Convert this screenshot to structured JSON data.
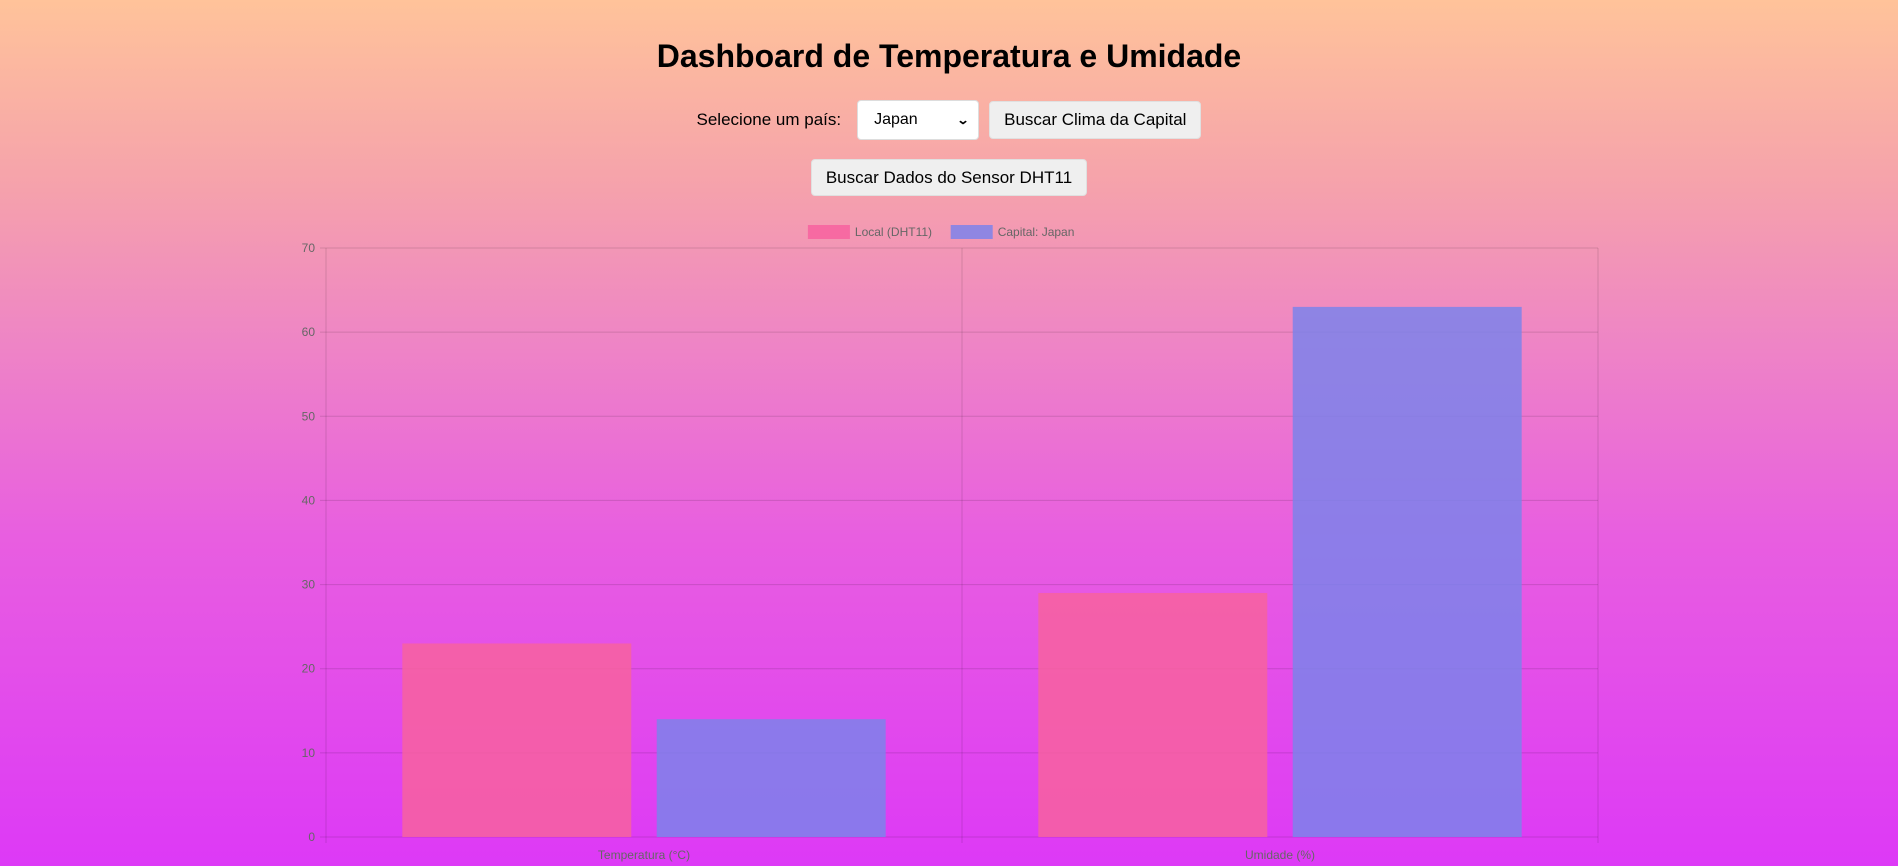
{
  "title": "Dashboard de Temperatura e Umidade",
  "controls": {
    "country_label": "Selecione um país:",
    "country_selected": "Japan",
    "fetch_capital_button": "Buscar Clima da Capital",
    "fetch_sensor_button": "Buscar Dados do Sensor DHT11"
  },
  "chart_data": {
    "type": "bar",
    "categories": [
      "Temperatura (°C)",
      "Umidade (%)"
    ],
    "series": [
      {
        "name": "Local (DHT11)",
        "values": [
          23,
          29
        ],
        "color": "#f7619f"
      },
      {
        "name": "Capital: Japan",
        "values": [
          14,
          63
        ],
        "color": "#7c83ea"
      }
    ],
    "ylim": [
      0,
      70
    ],
    "yticks": [
      0,
      10,
      20,
      30,
      40,
      50,
      60,
      70
    ],
    "grid": true,
    "legend": "top-center"
  }
}
